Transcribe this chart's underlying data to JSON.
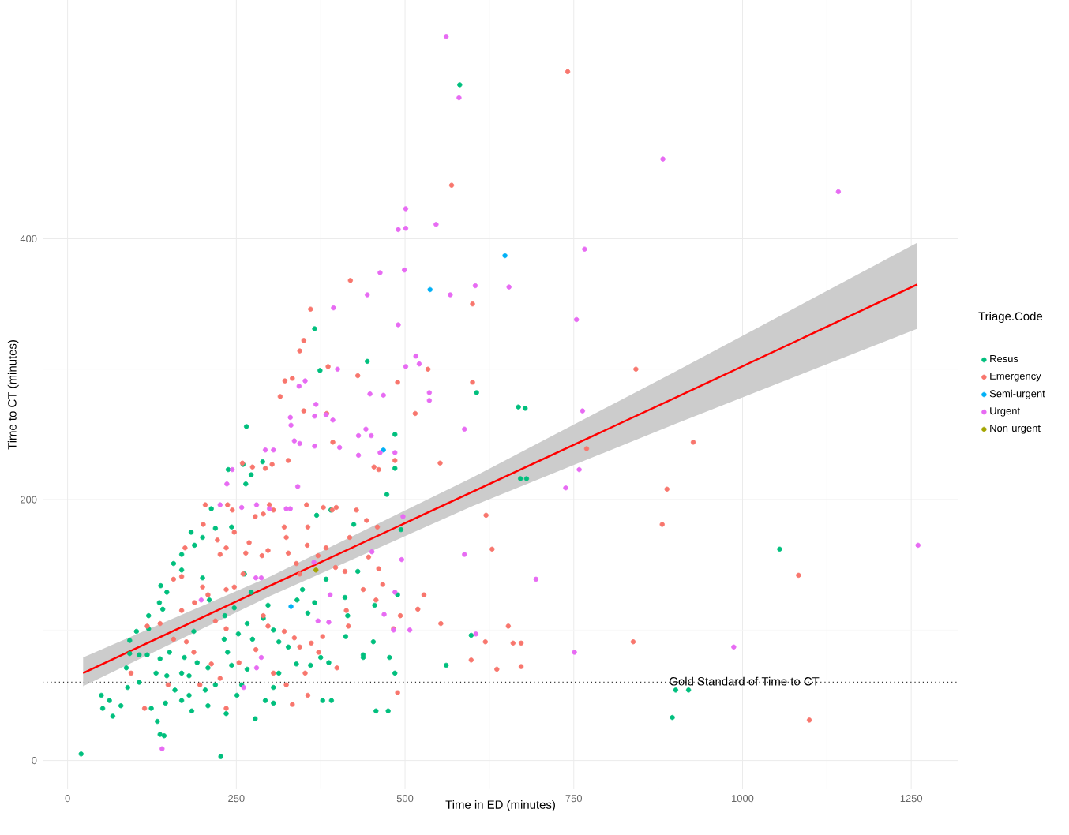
{
  "chart_data": {
    "type": "scatter",
    "xlabel": "Time in ED (minutes)",
    "ylabel": "Time to CT (minutes)",
    "legend_title": "Triage.Code",
    "legend": "right",
    "grid": true,
    "xlim": [
      -37,
      1320
    ],
    "ylim": [
      -22,
      583
    ],
    "xticks": [
      0,
      250,
      500,
      750,
      1000,
      1250
    ],
    "yticks": [
      0,
      200,
      400
    ],
    "ref_lines": [
      {
        "axis": "y",
        "value": 60,
        "label": "Gold Standard of Time to CT",
        "line_style": "dotted",
        "color": "#333333"
      }
    ],
    "series": [
      {
        "name": "Resus",
        "color": "#00bf7d",
        "marker": "circle",
        "x": [
          678,
          680,
          1055,
          901,
          920,
          896,
          581,
          366,
          444,
          374,
          265,
          606,
          668,
          671,
          485,
          485,
          473,
          494,
          424,
          369,
          390,
          238,
          260,
          289,
          272,
          264,
          213,
          219,
          243,
          183,
          188,
          169,
          200,
          138,
          147,
          136,
          141,
          157,
          169,
          120,
          120,
          102,
          92,
          92,
          106,
          87,
          118,
          137,
          151,
          173,
          192,
          208,
          131,
          147,
          169,
          180,
          159,
          180,
          204,
          219,
          145,
          169,
          184,
          208,
          79,
          67,
          52,
          124,
          133,
          137,
          143,
          20,
          227,
          232,
          237,
          253,
          266,
          274,
          233,
          247,
          297,
          290,
          305,
          340,
          348,
          356,
          366,
          327,
          339,
          360,
          375,
          313,
          305,
          293,
          278,
          305,
          387,
          391,
          378,
          412,
          415,
          438,
          438,
          453,
          477,
          485,
          457,
          475,
          455,
          430,
          411,
          383,
          262,
          272,
          200,
          210,
          187,
          243,
          266,
          258,
          561,
          598,
          489,
          313,
          89,
          106,
          50,
          62,
          251,
          235
        ],
        "values": [
          270,
          216,
          162,
          54,
          54,
          33,
          518,
          331,
          306,
          299,
          256,
          282,
          271,
          216,
          250,
          224,
          204,
          177,
          181,
          188,
          192,
          223,
          227,
          229,
          219,
          212,
          193,
          178,
          179,
          175,
          165,
          158,
          171,
          134,
          129,
          121,
          116,
          151,
          146,
          111,
          101,
          99,
          92,
          82,
          81,
          71,
          81,
          78,
          83,
          79,
          75,
          71,
          67,
          65,
          67,
          65,
          54,
          50,
          54,
          58,
          44,
          46,
          38,
          42,
          42,
          34,
          40,
          40,
          30,
          20,
          19,
          5,
          3,
          93,
          83,
          97,
          105,
          93,
          111,
          117,
          119,
          109,
          100,
          123,
          131,
          113,
          121,
          87,
          74,
          73,
          79,
          67,
          56,
          46,
          32,
          44,
          75,
          46,
          46,
          95,
          111,
          81,
          79,
          91,
          79,
          67,
          38,
          38,
          119,
          145,
          125,
          139,
          143,
          129,
          140,
          123,
          99,
          73,
          70,
          58,
          73,
          96,
          127,
          91,
          56,
          60,
          50,
          46,
          50,
          36
        ]
      },
      {
        "name": "Emergency",
        "color": "#f8766d",
        "marker": "circle",
        "x": [
          741,
          842,
          927,
          888,
          881,
          1083,
          838,
          1099,
          769,
          672,
          672,
          569,
          600,
          419,
          360,
          350,
          344,
          322,
          333,
          315,
          386,
          430,
          489,
          534,
          600,
          515,
          350,
          384,
          393,
          552,
          454,
          461,
          485,
          293,
          303,
          259,
          274,
          327,
          354,
          379,
          299,
          305,
          290,
          278,
          237,
          244,
          204,
          201,
          428,
          443,
          459,
          321,
          324,
          327,
          356,
          355,
          392,
          398,
          269,
          264,
          247,
          297,
          288,
          222,
          235,
          226,
          174,
          169,
          371,
          383,
          418,
          397,
          411,
          339,
          344,
          446,
          461,
          467,
          260,
          247,
          235,
          200,
          208,
          188,
          157,
          169,
          118,
          137,
          157,
          176,
          187,
          219,
          235,
          290,
          297,
          321,
          336,
          344,
          279,
          254,
          213,
          226,
          196,
          149,
          305,
          324,
          361,
          372,
          416,
          438,
          352,
          356,
          399,
          413,
          493,
          483,
          457,
          489,
          519,
          528,
          553,
          598,
          620,
          629,
          619,
          636,
          653,
          660,
          333,
          235,
          378,
          94,
          114
        ],
        "values": [
          528,
          300,
          244,
          208,
          181,
          142,
          91,
          31,
          239,
          90,
          72,
          441,
          350,
          368,
          346,
          322,
          314,
          291,
          293,
          279,
          302,
          295,
          290,
          300,
          290,
          266,
          268,
          266,
          244,
          228,
          225,
          223,
          230,
          224,
          227,
          228,
          225,
          230,
          196,
          194,
          196,
          192,
          189,
          187,
          196,
          192,
          196,
          181,
          192,
          184,
          179,
          179,
          171,
          159,
          179,
          165,
          192,
          194,
          167,
          159,
          175,
          161,
          157,
          169,
          163,
          158,
          163,
          141,
          157,
          163,
          171,
          148,
          145,
          151,
          143,
          156,
          147,
          135,
          143,
          133,
          131,
          133,
          127,
          121,
          139,
          115,
          103,
          105,
          93,
          91,
          83,
          107,
          101,
          111,
          103,
          99,
          94,
          87,
          85,
          75,
          74,
          63,
          58,
          58,
          67,
          58,
          90,
          83,
          103,
          131,
          67,
          50,
          71,
          115,
          111,
          101,
          123,
          52,
          116,
          127,
          105,
          77,
          188,
          162,
          91,
          70,
          103,
          90,
          43,
          40,
          95,
          67,
          40
        ]
      },
      {
        "name": "Semi-urgent",
        "color": "#00b0f6",
        "marker": "circle",
        "x": [
          537,
          648,
          468,
          331
        ],
        "values": [
          361,
          387,
          238,
          118
        ]
      },
      {
        "name": "Urgent",
        "color": "#e76bf3",
        "marker": "circle",
        "x": [
          561,
          580,
          501,
          490,
          501,
          546,
          463,
          499,
          444,
          567,
          604,
          654,
          394,
          490,
          501,
          516,
          521,
          400,
          448,
          468,
          536,
          536,
          343,
          352,
          368,
          330,
          331,
          383,
          393,
          588,
          431,
          450,
          442,
          336,
          344,
          366,
          403,
          366,
          431,
          463,
          485,
          293,
          305,
          236,
          244,
          341,
          226,
          258,
          280,
          299,
          324,
          330,
          279,
          287,
          365,
          451,
          495,
          497,
          588,
          507,
          605,
          389,
          198,
          140,
          387,
          469,
          483,
          261,
          280,
          287,
          371,
          485,
          882,
          1142,
          766,
          754,
          763,
          758,
          738,
          694,
          751,
          987,
          1260
        ],
        "values": [
          555,
          508,
          423,
          407,
          408,
          411,
          374,
          376,
          357,
          357,
          364,
          363,
          347,
          334,
          302,
          310,
          304,
          300,
          281,
          280,
          282,
          276,
          287,
          291,
          273,
          263,
          257,
          265,
          261,
          254,
          249,
          249,
          254,
          245,
          243,
          241,
          240,
          264,
          234,
          236,
          236,
          238,
          238,
          212,
          223,
          210,
          196,
          194,
          196,
          193,
          193,
          193,
          140,
          140,
          152,
          160,
          154,
          187,
          158,
          100,
          97,
          127,
          123,
          9,
          106,
          112,
          100,
          56,
          71,
          79,
          107,
          129,
          461,
          436,
          392,
          338,
          268,
          223,
          209,
          139,
          83,
          87,
          165
        ]
      },
      {
        "name": "Non-urgent",
        "color": "#a3a500",
        "marker": "circle",
        "x": [
          368
        ],
        "values": [
          146
        ]
      },
      {
        "type": "line",
        "marker": "none",
        "color": "#ff0000",
        "x": [
          23,
          300,
          600,
          900,
          1259
        ],
        "values": [
          67,
          134,
          206,
          278,
          365
        ],
        "lower": [
          57,
          126,
          195,
          258,
          331
        ],
        "upper": [
          79,
          141,
          217,
          298,
          397
        ]
      }
    ]
  }
}
